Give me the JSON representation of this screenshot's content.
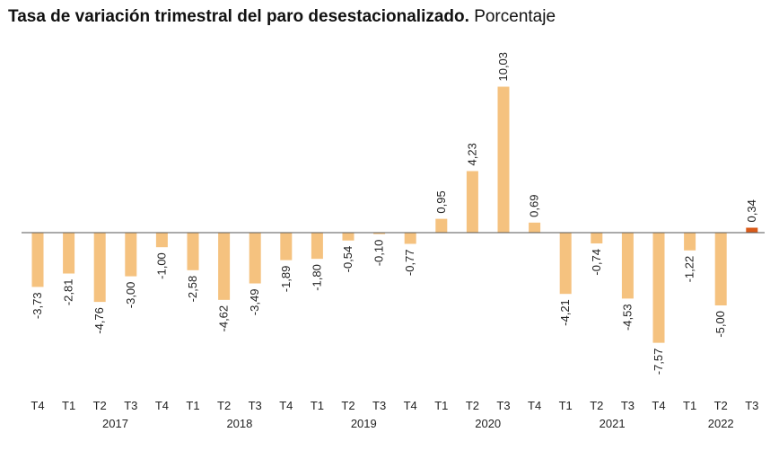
{
  "chart_data": {
    "type": "bar",
    "title": "Tasa de variación trimestral del paro desestacionalizado.",
    "subtitle": "Porcentaje",
    "categories": [
      "T4",
      "T1",
      "T2",
      "T3",
      "T4",
      "T1",
      "T2",
      "T3",
      "T4",
      "T1",
      "T2",
      "T3",
      "T4",
      "T1",
      "T2",
      "T3",
      "T4",
      "T1",
      "T2",
      "T3",
      "T4",
      "T1",
      "T2",
      "T3"
    ],
    "years": [
      {
        "label": "2017",
        "start": 1,
        "end": 4
      },
      {
        "label": "2018",
        "start": 5,
        "end": 8
      },
      {
        "label": "2019",
        "start": 9,
        "end": 12
      },
      {
        "label": "2020",
        "start": 13,
        "end": 16
      },
      {
        "label": "2021",
        "start": 17,
        "end": 20
      },
      {
        "label": "2022",
        "start": 21,
        "end": 23
      }
    ],
    "values": [
      -3.73,
      -2.81,
      -4.76,
      -3.0,
      -1.0,
      -2.58,
      -4.62,
      -3.49,
      -1.89,
      -1.8,
      -0.54,
      -0.1,
      -0.77,
      0.95,
      4.23,
      10.03,
      0.69,
      -4.21,
      -0.74,
      -4.53,
      -7.57,
      -1.22,
      -5.0,
      0.34
    ],
    "value_labels": [
      "-3,73",
      "-2,81",
      "-4,76",
      "-3,00",
      "-1,00",
      "-2,58",
      "-4,62",
      "-3,49",
      "-1,89",
      "-1,80",
      "-0,54",
      "-0,10",
      "-0,77",
      "0,95",
      "4,23",
      "10,03",
      "0,69",
      "-4,21",
      "-0,74",
      "-4,53",
      "-7,57",
      "-1,22",
      "-5,00",
      "0,34"
    ],
    "highlight_index": 23,
    "colors": {
      "bar": "#f5c27f",
      "highlight": "#d95b1a",
      "axis": "#555555"
    },
    "grid": false,
    "legend": "none"
  }
}
